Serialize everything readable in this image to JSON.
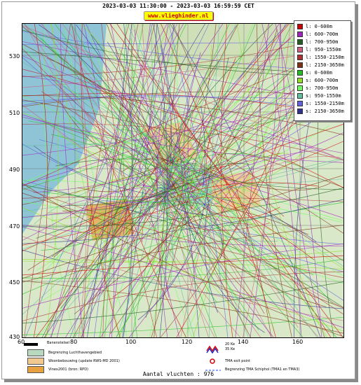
{
  "header": {
    "title": "2023-03-03 11:30:00 - 2023-03-03 16:59:59 CET",
    "brand": "www.vlieghinder.nl"
  },
  "axes": {
    "y_ticks": [
      "530",
      "510",
      "490",
      "470",
      "450",
      "430"
    ],
    "x_ticks": [
      "60",
      "80",
      "100",
      "120",
      "140",
      "160"
    ]
  },
  "legend": {
    "items": [
      {
        "label": "l: 0-600m",
        "color": "#d00000"
      },
      {
        "label": "l: 600-700m",
        "color": "#a020c0"
      },
      {
        "label": "l: 700-950m",
        "color": "#206020"
      },
      {
        "label": "l: 950-1550m",
        "color": "#d06080"
      },
      {
        "label": "l: 1550-2150m",
        "color": "#b03030"
      },
      {
        "label": "l: 2150-3650m",
        "color": "#803010"
      },
      {
        "label": "s: 0-600m",
        "color": "#20c020"
      },
      {
        "label": "s: 600-700m",
        "color": "#90e020"
      },
      {
        "label": "s: 700-950m",
        "color": "#70ff60"
      },
      {
        "label": "s: 950-1550m",
        "color": "#60c0a0"
      },
      {
        "label": "s: 1550-2150m",
        "color": "#6060e0"
      },
      {
        "label": "s: 2150-3650m",
        "color": "#303090"
      }
    ]
  },
  "bottom_legend": {
    "items": [
      {
        "label": "Banenstelsel",
        "color": "#000000"
      },
      {
        "label": "Begrenzing Luchthavengebied",
        "color": "#b8d8c0"
      },
      {
        "label": "Woonbebouwing (update RWS-MD 2001)",
        "color": "#f0c890"
      },
      {
        "label": "Vinex2001 (bron: RPD)",
        "color": "#e8a040"
      }
    ],
    "right": [
      {
        "label": "20 Ke\n35 Ke"
      },
      {
        "label": "TMA exit point"
      },
      {
        "label": "Begrenzing TMA Schiphol  (TMA1 en TMA3)"
      }
    ],
    "ke20": "20 Ke",
    "ke35": "35 Ke"
  },
  "footer": {
    "label": "Aantal vluchten : 976"
  }
}
